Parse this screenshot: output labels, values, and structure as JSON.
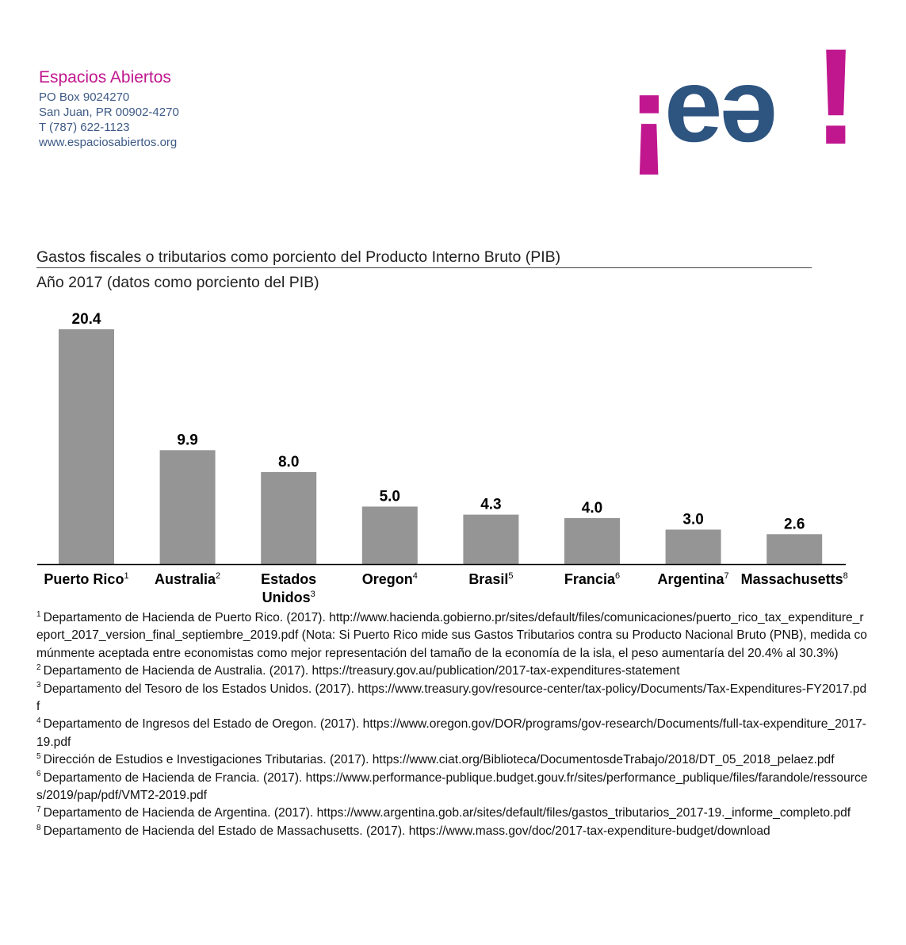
{
  "header": {
    "org_name": "Espacios Abiertos",
    "address_lines": [
      "PO Box 9024270",
      "San Juan, PR 00902-4270",
      "T (787) 622-1123",
      "www.espaciosabiertos.org"
    ],
    "logo": {
      "open_mark": "¡",
      "text": "eə",
      "close_mark": "!",
      "mark_color": "#c0178f",
      "text_color": "#2e5480"
    }
  },
  "chart_data": {
    "type": "bar",
    "title": "Gastos fiscales o tributarios como porciento del Producto Interno Bruto (PIB)",
    "subtitle": "Año 2017 (datos como porciento del PIB)",
    "categories": [
      "Puerto Rico",
      "Australia",
      "Estados Unidos",
      "Oregon",
      "Brasil",
      "Francia",
      "Argentina",
      "Massachusetts"
    ],
    "category_labels": [
      {
        "lines": [
          "Puerto Rico"
        ],
        "note": "1"
      },
      {
        "lines": [
          "Australia"
        ],
        "note": "2"
      },
      {
        "lines": [
          "Estados",
          "Unidos"
        ],
        "note": "3"
      },
      {
        "lines": [
          "Oregon"
        ],
        "note": "4"
      },
      {
        "lines": [
          "Brasil"
        ],
        "note": "5"
      },
      {
        "lines": [
          "Francia"
        ],
        "note": "6"
      },
      {
        "lines": [
          "Argentina"
        ],
        "note": "7"
      },
      {
        "lines": [
          "Massachusetts"
        ],
        "note": "8"
      }
    ],
    "values": [
      20.4,
      9.9,
      8.0,
      5.0,
      4.3,
      4.0,
      3.0,
      2.6
    ],
    "value_labels": [
      "20.4",
      "9.9",
      "8.0",
      "5.0",
      "4.3",
      "4.0",
      "3.0",
      "2.6"
    ],
    "bar_color": "#959595",
    "ylim": [
      0,
      20.4
    ],
    "grid": false,
    "legend": "none"
  },
  "footnotes": [
    {
      "num": "1",
      "text": "Departamento de Hacienda de Puerto Rico. (2017). http://www.hacienda.gobierno.pr/sites/default/files/comunicaciones/puerto_rico_tax_expenditure_report_2017_version_final_septiembre_2019.pdf (Nota: Si Puerto Rico mide sus Gastos Tributarios contra su Producto Nacional Bruto (PNB), medida comúnmente aceptada entre economistas como mejor representación del tamaño de la economía de la isla, el peso aumentaría del 20.4% al 30.3%)"
    },
    {
      "num": "2",
      "text": "Departamento de Hacienda de Australia. (2017). https://treasury.gov.au/publication/2017-tax-expenditures-statement"
    },
    {
      "num": "3",
      "text": "Departamento del Tesoro de los Estados Unidos. (2017). https://www.treasury.gov/resource-center/tax-policy/Documents/Tax-Expenditures-FY2017.pdf"
    },
    {
      "num": "4",
      "text": "Departamento de Ingresos del Estado de Oregon. (2017). https://www.oregon.gov/DOR/programs/gov-research/Documents/full-tax-expenditure_2017-19.pdf"
    },
    {
      "num": "5",
      "text": "Dirección de Estudios e Investigaciones Tributarias. (2017). https://www.ciat.org/Biblioteca/DocumentosdeTrabajo/2018/DT_05_2018_pelaez.pdf"
    },
    {
      "num": "6",
      "text": "Departamento de Hacienda de Francia. (2017). https://www.performance-publique.budget.gouv.fr/sites/performance_publique/files/farandole/ressources/2019/pap/pdf/VMT2-2019.pdf"
    },
    {
      "num": "7",
      "text": "Departamento de Hacienda de Argentina. (2017). https://www.argentina.gob.ar/sites/default/files/gastos_tributarios_2017-19._informe_completo.pdf"
    },
    {
      "num": "8",
      "text": "Departamento de Hacienda del Estado de Massachusetts. (2017). https://www.mass.gov/doc/2017-tax-expenditure-budget/download"
    }
  ]
}
